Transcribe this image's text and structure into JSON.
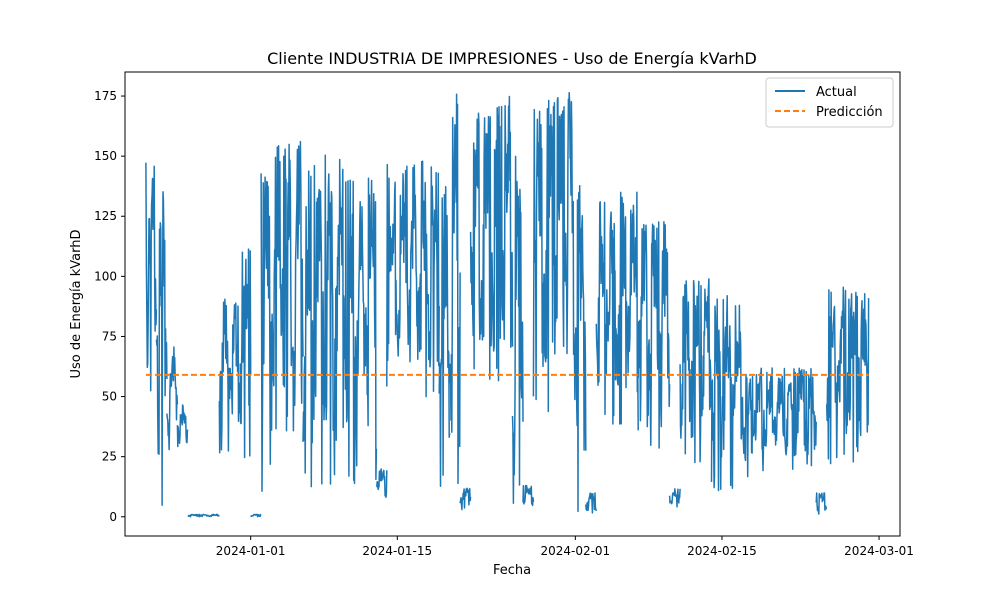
{
  "chart_data": {
    "type": "line",
    "title": "Cliente INDUSTRIA DE IMPRESIONES - Uso de Energía kVarhD",
    "xlabel": "Fecha",
    "ylabel": "Uso de Energía kVarhD",
    "xlim": [
      "2023-12-20",
      "2024-03-03"
    ],
    "ylim": [
      -8,
      185
    ],
    "x_ticks": [
      "2024-01-01",
      "2024-01-15",
      "2024-02-01",
      "2024-02-15",
      "2024-03-01"
    ],
    "y_ticks": [
      0,
      25,
      50,
      75,
      100,
      125,
      150,
      175
    ],
    "grid": false,
    "legend_position": "top-right",
    "colors": {
      "actual": "#1f77b4",
      "prediction": "#ff7f0e"
    },
    "series": [
      {
        "name": "Actual",
        "style": "solid",
        "color": "#1f77b4",
        "x_range": [
          "2023-12-22",
          "2024-02-29"
        ],
        "segments": [
          {
            "start": "2023-12-22",
            "end": "2023-12-23",
            "low": 44,
            "high": 152
          },
          {
            "start": "2023-12-23",
            "end": "2023-12-24",
            "low": 0,
            "high": 136
          },
          {
            "start": "2023-12-24",
            "end": "2023-12-25",
            "low": 27,
            "high": 72
          },
          {
            "start": "2023-12-25",
            "end": "2023-12-26",
            "low": 26,
            "high": 47
          },
          {
            "start": "2023-12-26",
            "end": "2023-12-29",
            "low": 0,
            "high": 1
          },
          {
            "start": "2023-12-29",
            "end": "2023-12-31",
            "low": 22,
            "high": 91
          },
          {
            "start": "2023-12-31",
            "end": "2024-01-01",
            "low": 20,
            "high": 112
          },
          {
            "start": "2024-01-01",
            "end": "2024-01-02",
            "low": 0,
            "high": 1
          },
          {
            "start": "2024-01-02",
            "end": "2024-01-03",
            "low": 9,
            "high": 145
          },
          {
            "start": "2024-01-03",
            "end": "2024-01-06",
            "low": 35,
            "high": 158
          },
          {
            "start": "2024-01-06",
            "end": "2024-01-07",
            "low": 8,
            "high": 145
          },
          {
            "start": "2024-01-07",
            "end": "2024-01-10",
            "low": 10,
            "high": 153
          },
          {
            "start": "2024-01-10",
            "end": "2024-01-13",
            "low": 8,
            "high": 141
          },
          {
            "start": "2024-01-13",
            "end": "2024-01-14",
            "low": 8,
            "high": 20
          },
          {
            "start": "2024-01-14",
            "end": "2024-01-19",
            "low": 45,
            "high": 148
          },
          {
            "start": "2024-01-19",
            "end": "2024-01-20",
            "low": 10,
            "high": 141
          },
          {
            "start": "2024-01-20",
            "end": "2024-01-21",
            "low": 3,
            "high": 176
          },
          {
            "start": "2024-01-21",
            "end": "2024-01-22",
            "low": 3,
            "high": 12
          },
          {
            "start": "2024-01-22",
            "end": "2024-01-26",
            "low": 50,
            "high": 175
          },
          {
            "start": "2024-01-26",
            "end": "2024-01-27",
            "low": 5,
            "high": 150
          },
          {
            "start": "2024-01-27",
            "end": "2024-01-28",
            "low": 4,
            "high": 13
          },
          {
            "start": "2024-01-28",
            "end": "2024-02-01",
            "low": 40,
            "high": 177
          },
          {
            "start": "2024-02-01",
            "end": "2024-02-02",
            "low": 2,
            "high": 140
          },
          {
            "start": "2024-02-02",
            "end": "2024-02-03",
            "low": 1,
            "high": 10
          },
          {
            "start": "2024-02-03",
            "end": "2024-02-07",
            "low": 35,
            "high": 135
          },
          {
            "start": "2024-02-07",
            "end": "2024-02-10",
            "low": 22,
            "high": 124
          },
          {
            "start": "2024-02-10",
            "end": "2024-02-11",
            "low": 4,
            "high": 12
          },
          {
            "start": "2024-02-11",
            "end": "2024-02-14",
            "low": 20,
            "high": 100
          },
          {
            "start": "2024-02-14",
            "end": "2024-02-17",
            "low": 10,
            "high": 92
          },
          {
            "start": "2024-02-17",
            "end": "2024-02-18",
            "low": 15,
            "high": 60
          },
          {
            "start": "2024-02-18",
            "end": "2024-02-24",
            "low": 18,
            "high": 62
          },
          {
            "start": "2024-02-24",
            "end": "2024-02-25",
            "low": 1,
            "high": 10
          },
          {
            "start": "2024-02-25",
            "end": "2024-02-29",
            "low": 22,
            "high": 96
          }
        ]
      },
      {
        "name": "Predicción",
        "style": "dashed",
        "color": "#ff7f0e",
        "x": [
          "2023-12-22",
          "2024-02-29"
        ],
        "values": [
          59,
          59
        ]
      }
    ]
  }
}
